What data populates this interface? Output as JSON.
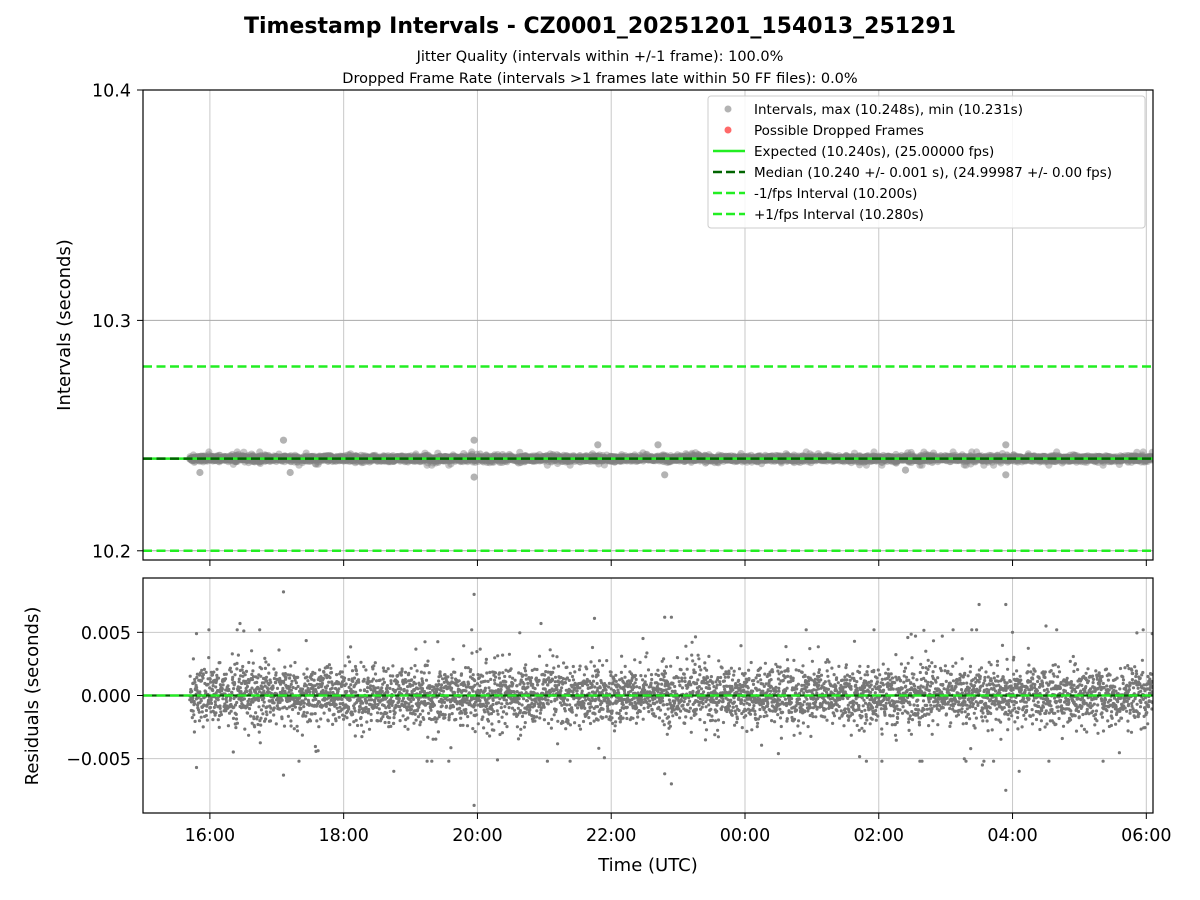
{
  "figure": {
    "title": "Timestamp Intervals - CZ0001_20251201_154013_251291",
    "subtitle_1": "Jitter Quality (intervals within +/-1 frame): 100.0%",
    "subtitle_2": "Dropped Frame Rate (intervals >1 frames late within 50 FF files): 0.0%"
  },
  "colors": {
    "points": "#808080",
    "dropped": "#ff4444",
    "expected": "#22ee22",
    "median": "#006400",
    "bounds": "#22ee22",
    "grid": "#c8c8c8"
  },
  "chart_data": [
    {
      "type": "scatter",
      "panel": "intervals",
      "ylabel": "Intervals (seconds)",
      "xlim_hours": [
        15.0,
        30.1
      ],
      "ylim": [
        10.196,
        10.4
      ],
      "y_ticks": [
        "10.2",
        "10.3",
        "10.4"
      ],
      "y_tick_values": [
        10.2,
        10.3,
        10.4
      ],
      "x_ticks": [
        "16:00",
        "18:00",
        "20:00",
        "22:00",
        "00:00",
        "02:00",
        "04:00",
        "06:00"
      ],
      "x_tick_hours": [
        16,
        18,
        20,
        22,
        24,
        26,
        28,
        30
      ],
      "data_start_hour": 15.7,
      "data_end_hour": 30.1,
      "point_count": 5100,
      "max_interval": 10.248,
      "min_interval": 10.231,
      "expected_interval": 10.24,
      "median_interval": 10.24,
      "lower_bound": 10.2,
      "upper_bound": 10.28,
      "outliers": [
        {
          "t": 17.1,
          "v": 10.248
        },
        {
          "t": 19.95,
          "v": 10.248
        },
        {
          "t": 19.95,
          "v": 10.232
        },
        {
          "t": 21.8,
          "v": 10.246
        },
        {
          "t": 22.8,
          "v": 10.233
        },
        {
          "t": 22.7,
          "v": 10.246
        },
        {
          "t": 27.9,
          "v": 10.246
        },
        {
          "t": 27.9,
          "v": 10.233
        },
        {
          "t": 17.2,
          "v": 10.234
        },
        {
          "t": 26.4,
          "v": 10.235
        },
        {
          "t": 15.85,
          "v": 10.234
        }
      ],
      "legend": [
        {
          "label": "Intervals, max (10.248s), min (10.231s)",
          "kind": "point-gray"
        },
        {
          "label": "Possible Dropped Frames",
          "kind": "point-red"
        },
        {
          "label": "Expected (10.240s), (25.00000 fps)",
          "kind": "line-expected"
        },
        {
          "label": "Median (10.240 +/- 0.001 s), (24.99987 +/- 0.00 fps)",
          "kind": "dash-median"
        },
        {
          "label": "-1/fps Interval (10.200s)",
          "kind": "dash-bound"
        },
        {
          "label": "+1/fps Interval (10.280s)",
          "kind": "dash-bound"
        }
      ]
    },
    {
      "type": "scatter",
      "panel": "residuals",
      "ylabel": "Residuals (seconds)",
      "xlabel": "Time (UTC)",
      "xlim_hours": [
        15.0,
        30.1
      ],
      "ylim": [
        -0.0093,
        0.0093
      ],
      "y_ticks": [
        "0.005",
        "0.000",
        "−0.005"
      ],
      "y_tick_values": [
        0.005,
        0.0,
        -0.005
      ],
      "x_ticks": [
        "16:00",
        "18:00",
        "20:00",
        "22:00",
        "00:00",
        "02:00",
        "04:00",
        "06:00"
      ],
      "x_tick_hours": [
        16,
        18,
        20,
        22,
        24,
        26,
        28,
        30
      ],
      "data_start_hour": 15.7,
      "data_end_hour": 30.1,
      "point_count": 5100,
      "zero_line": 0.0,
      "outliers": [
        {
          "t": 17.1,
          "v": 0.0082
        },
        {
          "t": 19.95,
          "v": 0.008
        },
        {
          "t": 19.95,
          "v": -0.0087
        },
        {
          "t": 22.8,
          "v": 0.0062
        },
        {
          "t": 22.9,
          "v": 0.0062
        },
        {
          "t": 22.8,
          "v": -0.0062
        },
        {
          "t": 22.9,
          "v": -0.007
        },
        {
          "t": 21.75,
          "v": 0.0061
        },
        {
          "t": 20.3,
          "v": -0.0051
        },
        {
          "t": 27.5,
          "v": 0.0072
        },
        {
          "t": 27.9,
          "v": 0.0072
        },
        {
          "t": 27.9,
          "v": -0.0075
        },
        {
          "t": 28.1,
          "v": -0.006
        },
        {
          "t": 27.55,
          "v": -0.0055
        },
        {
          "t": 17.1,
          "v": -0.0063
        },
        {
          "t": 16.45,
          "v": 0.0057
        },
        {
          "t": 15.8,
          "v": 0.0049
        },
        {
          "t": 15.8,
          "v": -0.0057
        },
        {
          "t": 18.75,
          "v": -0.006
        },
        {
          "t": 20.95,
          "v": 0.0057
        },
        {
          "t": 26.55,
          "v": 0.0047
        },
        {
          "t": 26.95,
          "v": 0.0047
        },
        {
          "t": 28.5,
          "v": 0.0055
        },
        {
          "t": 28.0,
          "v": 0.005
        },
        {
          "t": 24.5,
          "v": -0.0046
        }
      ]
    }
  ]
}
